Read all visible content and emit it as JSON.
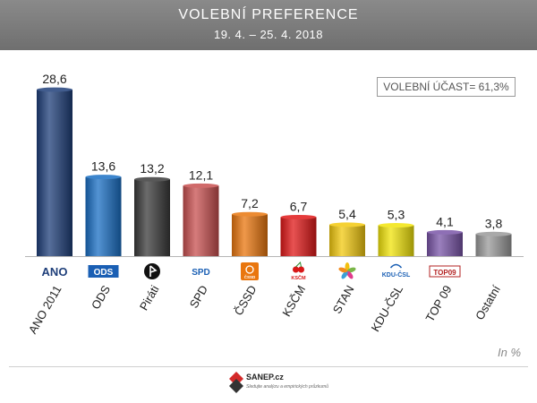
{
  "header": {
    "title": "VOLEBNÍ PREFERENCE",
    "subtitle": "19. 4. – 25. 4. 2018"
  },
  "turnout_label": "VOLEBNÍ ÚČAST= 61,3%",
  "unit_label": "In %",
  "logo": {
    "name": "SANEP.cz",
    "tagline": "Sledujte analýzu a empirických průzkumů"
  },
  "chart_data": {
    "type": "bar",
    "title": "VOLEBNÍ PREFERENCE",
    "subtitle": "19. 4. – 25. 4. 2018",
    "categories": [
      "ANO 2011",
      "ODS",
      "Piráti",
      "SPD",
      "ČSSD",
      "KSČM",
      "STAN",
      "KDU-ČSL",
      "TOP 09",
      "Ostatní"
    ],
    "values": [
      28.6,
      13.6,
      13.2,
      12.1,
      7.2,
      6.7,
      5.4,
      5.3,
      4.1,
      3.8
    ],
    "value_labels": [
      "28,6",
      "13,6",
      "13,2",
      "12,1",
      "7,2",
      "6,7",
      "5,4",
      "5,3",
      "4,1",
      "3,8"
    ],
    "colors": [
      "#1f3f7a",
      "#1a6fc4",
      "#3a3a3a",
      "#c85050",
      "#e9760e",
      "#e01818",
      "#f3c90f",
      "#f2e40a",
      "#7a55a8",
      "#9a9a9a"
    ],
    "logo_labels": [
      "ANO",
      "ODS",
      "",
      "SPD",
      "ČSSD",
      "KSČM",
      "",
      "KDU-ČSL",
      "TOP09",
      ""
    ],
    "ylabel": "In %",
    "ylim": [
      0,
      30
    ],
    "grid": false,
    "legend": false
  }
}
